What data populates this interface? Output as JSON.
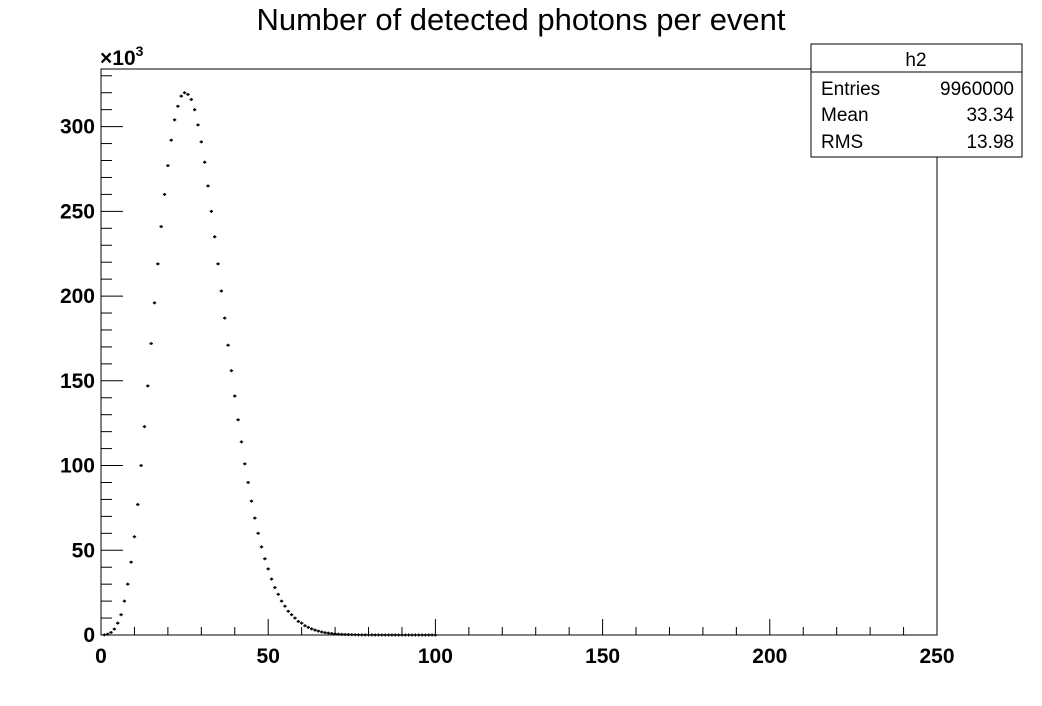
{
  "chart_data": {
    "type": "bar",
    "title": "Number of detected photons per event",
    "xlabel": "",
    "ylabel": "",
    "xlim": [
      0,
      250
    ],
    "ylim": [
      0,
      334
    ],
    "y_multiplier": "×10",
    "y_multiplier_exponent": "3",
    "grid": false,
    "x_ticks": [
      0,
      50,
      100,
      150,
      200,
      250
    ],
    "x_tick_labels": [
      "0",
      "50",
      "100",
      "150",
      "200",
      "250"
    ],
    "y_ticks": [
      0,
      50,
      100,
      150,
      200,
      250,
      300
    ],
    "y_tick_labels": [
      "0",
      "50",
      "100",
      "150",
      "200",
      "250",
      "300"
    ],
    "series": [
      {
        "x": [
          1,
          2,
          3,
          4,
          5,
          6,
          7,
          8,
          9,
          10,
          11,
          12,
          13,
          14,
          15,
          16,
          17,
          18,
          19,
          20,
          21,
          22,
          23,
          24,
          25,
          26,
          27,
          28,
          29,
          30,
          31,
          32,
          33,
          34,
          35,
          36,
          37,
          38,
          39,
          40,
          41,
          42,
          43,
          44,
          45,
          46,
          47,
          48,
          49,
          50,
          51,
          52,
          53,
          54,
          55,
          56,
          57,
          58,
          59,
          60,
          61,
          62,
          63,
          64,
          65,
          66,
          67,
          68,
          69,
          70,
          71,
          72,
          73,
          74,
          75,
          76,
          77,
          78,
          79,
          80,
          81,
          82,
          83,
          84,
          85,
          86,
          87,
          88,
          89,
          90,
          91,
          92,
          93,
          94,
          95,
          96,
          97,
          98,
          99,
          100
        ],
        "values": [
          0.1,
          0.5,
          1.5,
          3.5,
          7,
          12,
          20,
          30,
          43,
          58,
          77,
          100,
          123,
          147,
          172,
          196,
          219,
          241,
          260,
          277,
          292,
          304,
          312,
          318,
          320,
          319,
          316,
          310,
          301,
          291,
          279,
          265,
          250,
          235,
          219,
          203,
          187,
          171,
          156,
          141,
          127,
          114,
          101,
          90,
          79,
          69,
          60,
          52,
          45,
          39,
          33,
          28,
          24,
          20,
          17,
          14,
          12,
          10,
          8,
          7,
          5.5,
          4.5,
          3.6,
          2.9,
          2.3,
          1.8,
          1.4,
          1.1,
          0.9,
          0.7,
          0.5,
          0.4,
          0.3,
          0.25,
          0.2,
          0.15,
          0.1,
          0.08,
          0.06,
          0.05,
          0.04,
          0.03,
          0.02,
          0.02,
          0.01,
          0.01,
          0.01,
          0.01,
          0,
          0,
          0,
          0,
          0,
          0,
          0,
          0,
          0,
          0,
          0,
          0
        ]
      }
    ]
  },
  "stats_box": {
    "name": "h2",
    "rows": [
      {
        "label": "Entries",
        "value": "9960000"
      },
      {
        "label": "Mean",
        "value": "33.34"
      },
      {
        "label": "RMS",
        "value": "13.98"
      }
    ]
  }
}
